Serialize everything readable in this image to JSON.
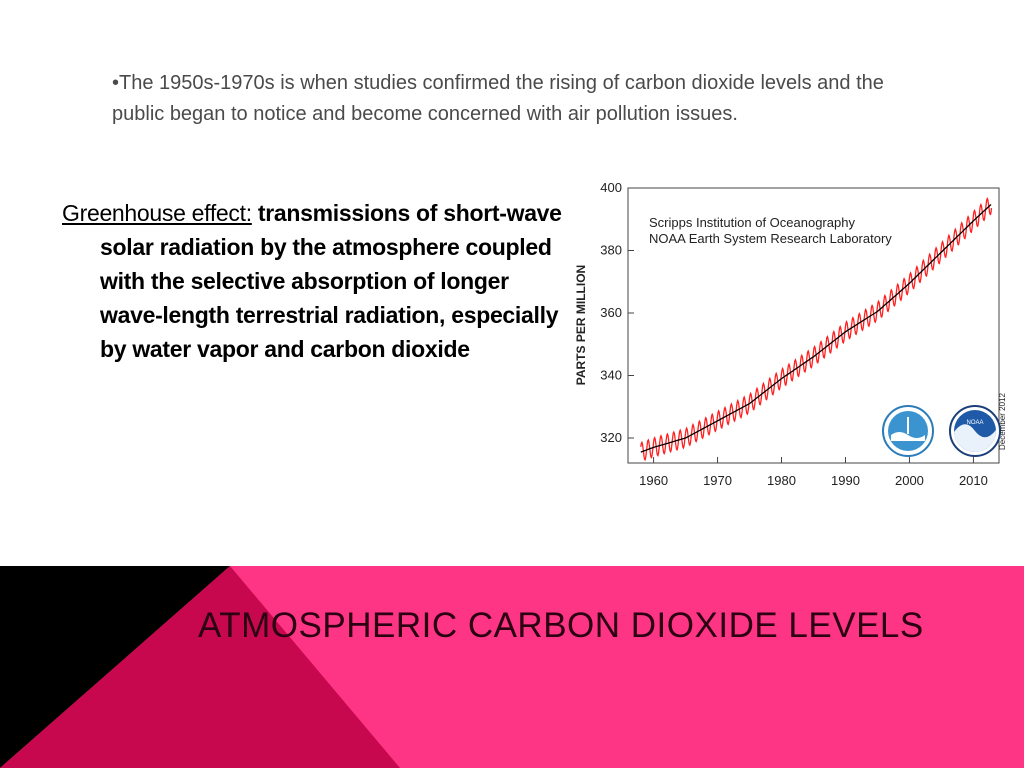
{
  "slide": {
    "bullet": "•The 1950s-1970s is when studies confirmed the rising of carbon dioxide levels and the public began to notice and become concerned with air pollution issues.",
    "definition_term": "Greenhouse effect:",
    "definition_body": "transmissions of short-wave solar radiation by the atmosphere coupled with the selective absorption of longer wave-length terrestrial radiation, especially by water vapor and carbon dioxide",
    "title": "ATMOSPHERIC CARBON DIOXIDE LEVELS"
  },
  "colors": {
    "accent_pink": "#fe3584",
    "dark_pink": "#c8084e",
    "black": "#000000",
    "series_monthly": "#ff2020",
    "series_trend": "#000000"
  },
  "chart_data": {
    "type": "line",
    "title": "",
    "credits": [
      "Scripps Institution of Oceanography",
      "NOAA Earth System Research Laboratory"
    ],
    "side_note": "December 2012",
    "logos": [
      "scripps-logo",
      "noaa-logo"
    ],
    "xlabel": "",
    "ylabel": "PARTS PER MILLION",
    "xlim": [
      1956,
      2014
    ],
    "ylim": [
      312,
      400
    ],
    "x_ticks": [
      1960,
      1970,
      1980,
      1990,
      2000,
      2010
    ],
    "y_ticks": [
      320,
      340,
      360,
      380,
      400
    ],
    "series": [
      {
        "name": "",
        "style": "monthly seasonal cycle (red)",
        "x": [
          1958,
          1960,
          1965,
          1970,
          1975,
          1980,
          1985,
          1990,
          1995,
          2000,
          2005,
          2010,
          2012.9
        ],
        "values": [
          315.5,
          317,
          320,
          325.5,
          331,
          339,
          346,
          354,
          360.5,
          369.5,
          379.5,
          389.5,
          395
        ],
        "seasonal_amplitude": 3
      },
      {
        "name": "",
        "style": "annual trend (black)",
        "x": [
          1958,
          1960,
          1965,
          1970,
          1975,
          1980,
          1985,
          1990,
          1995,
          2000,
          2005,
          2010,
          2012.9
        ],
        "values": [
          315.5,
          317,
          320,
          325.5,
          331,
          339,
          346,
          354,
          360.5,
          369.5,
          379.5,
          389.5,
          395
        ]
      }
    ],
    "grid": false,
    "legend": "none"
  }
}
